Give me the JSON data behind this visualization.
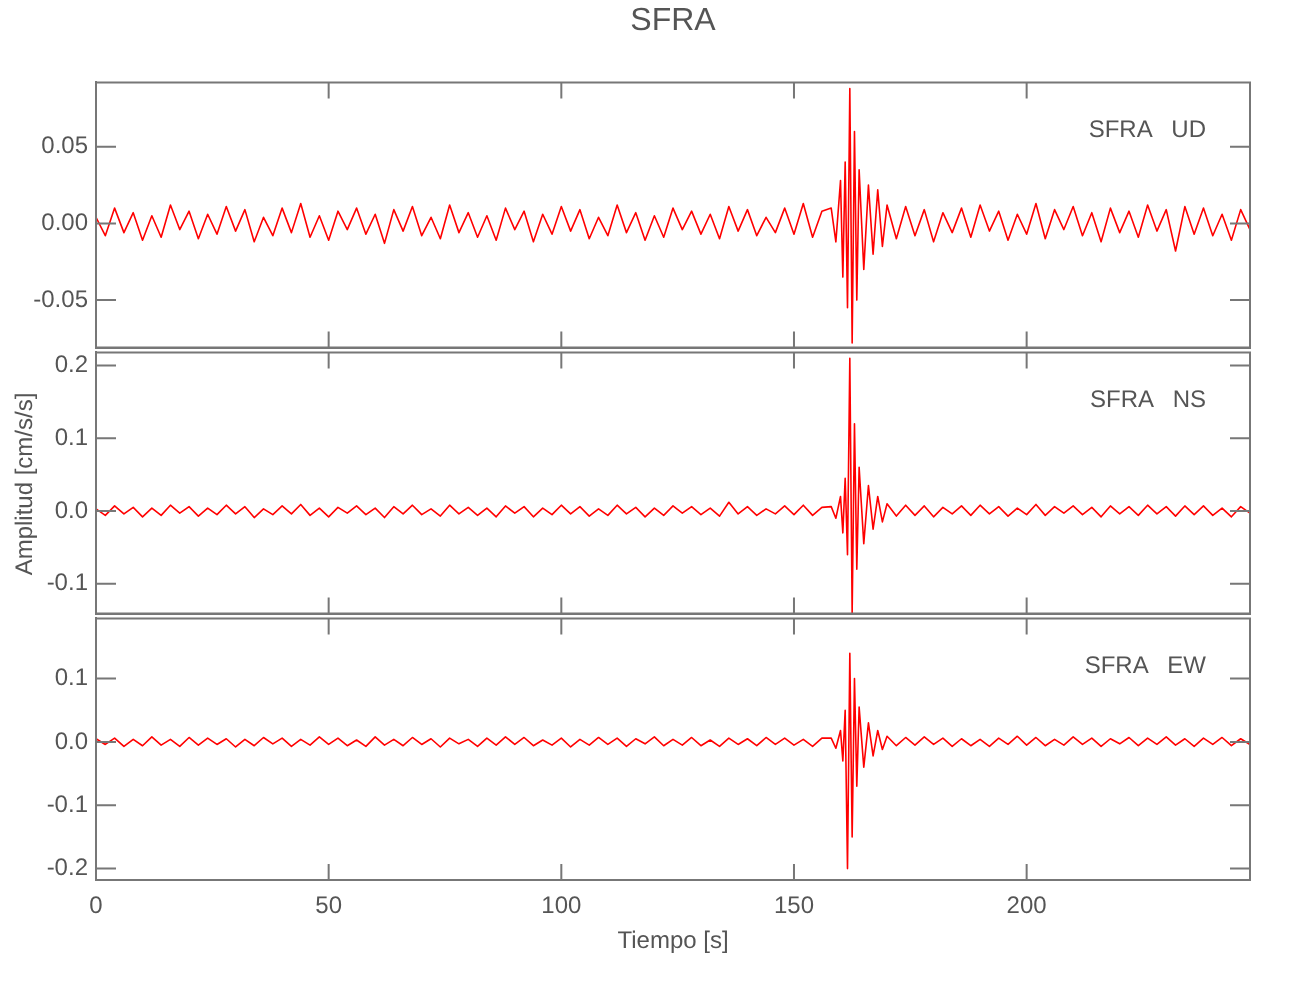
{
  "chart_data": [
    {
      "type": "line",
      "title": "SFRA",
      "annotations": [
        "SFRA   UD"
      ],
      "tick_labels": "y",
      "grid": false,
      "legend": false,
      "xlim": [
        0,
        248
      ],
      "xticks": [
        0,
        50,
        100,
        150,
        200
      ],
      "ylim": [
        -0.081,
        0.092
      ],
      "yticks": [
        {
          "value": -0.05,
          "label": "-0.05"
        },
        {
          "value": 0,
          "label": "0.00"
        },
        {
          "value": 0.05,
          "label": "0.05"
        }
      ],
      "x": [
        0,
        2,
        4,
        6,
        8,
        10,
        12,
        14,
        16,
        18,
        20,
        22,
        24,
        26,
        28,
        30,
        32,
        34,
        36,
        38,
        40,
        42,
        44,
        46,
        48,
        50,
        52,
        54,
        56,
        58,
        60,
        62,
        64,
        66,
        68,
        70,
        72,
        74,
        76,
        78,
        80,
        82,
        84,
        86,
        88,
        90,
        92,
        94,
        96,
        98,
        100,
        102,
        104,
        106,
        108,
        110,
        112,
        114,
        116,
        118,
        120,
        122,
        124,
        126,
        128,
        130,
        132,
        134,
        136,
        138,
        140,
        142,
        144,
        146,
        148,
        150,
        152,
        154,
        156,
        158,
        159,
        160,
        160.5,
        161,
        161.5,
        162,
        162.5,
        163,
        163.5,
        164,
        165,
        166,
        167,
        168,
        169,
        170,
        172,
        174,
        176,
        178,
        180,
        182,
        184,
        186,
        188,
        190,
        192,
        194,
        196,
        198,
        200,
        202,
        204,
        206,
        208,
        210,
        212,
        214,
        216,
        218,
        220,
        222,
        224,
        226,
        228,
        230,
        232,
        234,
        236,
        238,
        240,
        242,
        244,
        246,
        248
      ],
      "series": [
        {
          "color": "#ff0000",
          "values": [
            0.004,
            -0.008,
            0.01,
            -0.006,
            0.007,
            -0.011,
            0.005,
            -0.009,
            0.012,
            -0.004,
            0.008,
            -0.01,
            0.006,
            -0.007,
            0.011,
            -0.005,
            0.009,
            -0.012,
            0.004,
            -0.008,
            0.01,
            -0.006,
            0.013,
            -0.009,
            0.005,
            -0.011,
            0.008,
            -0.004,
            0.01,
            -0.007,
            0.006,
            -0.013,
            0.009,
            -0.005,
            0.011,
            -0.008,
            0.004,
            -0.01,
            0.012,
            -0.006,
            0.007,
            -0.009,
            0.005,
            -0.011,
            0.01,
            -0.004,
            0.008,
            -0.012,
            0.006,
            -0.007,
            0.011,
            -0.005,
            0.009,
            -0.01,
            0.004,
            -0.008,
            0.012,
            -0.006,
            0.007,
            -0.011,
            0.005,
            -0.009,
            0.01,
            -0.004,
            0.008,
            -0.007,
            0.006,
            -0.01,
            0.011,
            -0.005,
            0.009,
            -0.008,
            0.004,
            -0.006,
            0.01,
            -0.007,
            0.013,
            -0.009,
            0.008,
            0.01,
            -0.012,
            0.028,
            -0.035,
            0.04,
            -0.055,
            0.088,
            -0.078,
            0.06,
            -0.05,
            0.035,
            -0.03,
            0.025,
            -0.02,
            0.022,
            -0.015,
            0.012,
            -0.01,
            0.011,
            -0.008,
            0.009,
            -0.012,
            0.007,
            -0.006,
            0.01,
            -0.009,
            0.012,
            -0.005,
            0.008,
            -0.011,
            0.006,
            -0.007,
            0.013,
            -0.01,
            0.009,
            -0.004,
            0.011,
            -0.008,
            0.007,
            -0.012,
            0.01,
            -0.006,
            0.008,
            -0.009,
            0.012,
            -0.005,
            0.009,
            -0.018,
            0.011,
            -0.007,
            0.01,
            -0.008,
            0.006,
            -0.011,
            0.009,
            -0.004
          ]
        }
      ]
    },
    {
      "type": "line",
      "ylabel": "Amplitud [cm/s/s]",
      "annotations": [
        "SFRA   NS"
      ],
      "tick_labels": "y",
      "grid": false,
      "legend": false,
      "xlim": [
        0,
        248
      ],
      "xticks": [
        0,
        50,
        100,
        150,
        200
      ],
      "ylim": [
        -0.141,
        0.218
      ],
      "yticks": [
        -0.1,
        {
          "value": 0,
          "label": "0.0"
        },
        0.1,
        0.2
      ],
      "x": [
        0,
        2,
        4,
        6,
        8,
        10,
        12,
        14,
        16,
        18,
        20,
        22,
        24,
        26,
        28,
        30,
        32,
        34,
        36,
        38,
        40,
        42,
        44,
        46,
        48,
        50,
        52,
        54,
        56,
        58,
        60,
        62,
        64,
        66,
        68,
        70,
        72,
        74,
        76,
        78,
        80,
        82,
        84,
        86,
        88,
        90,
        92,
        94,
        96,
        98,
        100,
        102,
        104,
        106,
        108,
        110,
        112,
        114,
        116,
        118,
        120,
        122,
        124,
        126,
        128,
        130,
        132,
        134,
        136,
        138,
        140,
        142,
        144,
        146,
        148,
        150,
        152,
        154,
        156,
        158,
        159,
        160,
        160.5,
        161,
        161.5,
        162,
        162.5,
        163,
        163.5,
        164,
        165,
        166,
        167,
        168,
        169,
        170,
        172,
        174,
        176,
        178,
        180,
        182,
        184,
        186,
        188,
        190,
        192,
        194,
        196,
        198,
        200,
        202,
        204,
        206,
        208,
        210,
        212,
        214,
        216,
        218,
        220,
        222,
        224,
        226,
        228,
        230,
        232,
        234,
        236,
        238,
        240,
        242,
        244,
        246,
        248
      ],
      "series": [
        {
          "color": "#ff0000",
          "values": [
            0.003,
            -0.006,
            0.007,
            -0.004,
            0.005,
            -0.008,
            0.004,
            -0.006,
            0.008,
            -0.003,
            0.006,
            -0.007,
            0.004,
            -0.005,
            0.008,
            -0.004,
            0.006,
            -0.009,
            0.003,
            -0.005,
            0.007,
            -0.004,
            0.009,
            -0.006,
            0.004,
            -0.008,
            0.005,
            -0.003,
            0.007,
            -0.005,
            0.004,
            -0.009,
            0.006,
            -0.004,
            0.008,
            -0.005,
            0.003,
            -0.007,
            0.008,
            -0.004,
            0.005,
            -0.006,
            0.004,
            -0.008,
            0.007,
            -0.003,
            0.006,
            -0.008,
            0.004,
            -0.005,
            0.008,
            -0.004,
            0.006,
            -0.007,
            0.003,
            -0.006,
            0.008,
            -0.004,
            0.005,
            -0.008,
            0.004,
            -0.006,
            0.007,
            -0.003,
            0.006,
            -0.005,
            0.004,
            -0.007,
            0.012,
            -0.004,
            0.006,
            -0.006,
            0.003,
            -0.004,
            0.007,
            -0.005,
            0.008,
            -0.006,
            0.005,
            0.006,
            -0.01,
            0.02,
            -0.03,
            0.045,
            -0.06,
            0.21,
            -0.14,
            0.12,
            -0.08,
            0.06,
            -0.045,
            0.035,
            -0.025,
            0.02,
            -0.015,
            0.01,
            -0.007,
            0.008,
            -0.006,
            0.007,
            -0.008,
            0.005,
            -0.004,
            0.007,
            -0.006,
            0.008,
            -0.004,
            0.006,
            -0.007,
            0.004,
            -0.005,
            0.009,
            -0.006,
            0.006,
            -0.003,
            0.007,
            -0.005,
            0.005,
            -0.008,
            0.007,
            -0.004,
            0.006,
            -0.006,
            0.008,
            -0.004,
            0.006,
            -0.007,
            0.007,
            -0.005,
            0.007,
            -0.006,
            0.004,
            -0.008,
            0.006,
            -0.003
          ]
        }
      ]
    },
    {
      "type": "line",
      "xlabel": "Tiempo [s]",
      "annotations": [
        "SFRA   EW"
      ],
      "grid": false,
      "legend": false,
      "xlim": [
        0,
        248
      ],
      "xticks": [
        0,
        50,
        100,
        150,
        200
      ],
      "ylim": [
        -0.218,
        0.195
      ],
      "yticks": [
        -0.2,
        -0.1,
        {
          "value": 0,
          "label": "0.0"
        },
        0.1
      ],
      "x": [
        0,
        2,
        4,
        6,
        8,
        10,
        12,
        14,
        16,
        18,
        20,
        22,
        24,
        26,
        28,
        30,
        32,
        34,
        36,
        38,
        40,
        42,
        44,
        46,
        48,
        50,
        52,
        54,
        56,
        58,
        60,
        62,
        64,
        66,
        68,
        70,
        72,
        74,
        76,
        78,
        80,
        82,
        84,
        86,
        88,
        90,
        92,
        94,
        96,
        98,
        100,
        102,
        104,
        106,
        108,
        110,
        112,
        114,
        116,
        118,
        120,
        122,
        124,
        126,
        128,
        130,
        132,
        134,
        136,
        138,
        140,
        142,
        144,
        146,
        148,
        150,
        152,
        154,
        156,
        158,
        159,
        160,
        160.5,
        161,
        161.5,
        162,
        162.5,
        163,
        163.5,
        164,
        165,
        166,
        167,
        168,
        169,
        170,
        172,
        174,
        176,
        178,
        180,
        182,
        184,
        186,
        188,
        190,
        192,
        194,
        196,
        198,
        200,
        202,
        204,
        206,
        208,
        210,
        212,
        214,
        216,
        218,
        220,
        222,
        224,
        226,
        228,
        230,
        232,
        234,
        236,
        238,
        240,
        242,
        244,
        246,
        248
      ],
      "series": [
        {
          "color": "#ff0000",
          "values": [
            0.005,
            -0.004,
            0.006,
            -0.007,
            0.004,
            -0.006,
            0.008,
            -0.005,
            0.004,
            -0.007,
            0.007,
            -0.005,
            0.006,
            -0.004,
            0.005,
            -0.008,
            0.004,
            -0.006,
            0.007,
            -0.003,
            0.006,
            -0.007,
            0.004,
            -0.005,
            0.008,
            -0.004,
            0.006,
            -0.006,
            0.003,
            -0.007,
            0.008,
            -0.005,
            0.004,
            -0.006,
            0.007,
            -0.004,
            0.005,
            -0.008,
            0.006,
            -0.003,
            0.004,
            -0.007,
            0.006,
            -0.005,
            0.008,
            -0.004,
            0.007,
            -0.006,
            0.003,
            -0.005,
            0.006,
            -0.008,
            0.004,
            -0.005,
            0.007,
            -0.004,
            0.006,
            -0.007,
            0.005,
            -0.003,
            0.008,
            -0.006,
            0.004,
            -0.005,
            0.007,
            -0.006,
            0.003,
            -0.007,
            0.006,
            -0.004,
            0.005,
            -0.006,
            0.007,
            -0.004,
            0.006,
            -0.005,
            0.004,
            -0.007,
            0.006,
            0.006,
            -0.01,
            0.018,
            -0.03,
            0.05,
            -0.2,
            0.14,
            -0.15,
            0.1,
            -0.07,
            0.055,
            -0.04,
            0.03,
            -0.022,
            0.018,
            -0.012,
            0.009,
            -0.006,
            0.007,
            -0.005,
            0.008,
            -0.004,
            0.006,
            -0.007,
            0.005,
            -0.006,
            0.004,
            -0.007,
            0.006,
            -0.004,
            0.009,
            -0.005,
            0.007,
            -0.006,
            0.004,
            -0.005,
            0.008,
            -0.004,
            0.006,
            -0.007,
            0.005,
            -0.003,
            0.007,
            -0.006,
            0.006,
            -0.004,
            0.008,
            -0.005,
            0.005,
            -0.007,
            0.006,
            -0.004,
            0.007,
            -0.006,
            0.005,
            -0.004
          ]
        }
      ]
    }
  ]
}
